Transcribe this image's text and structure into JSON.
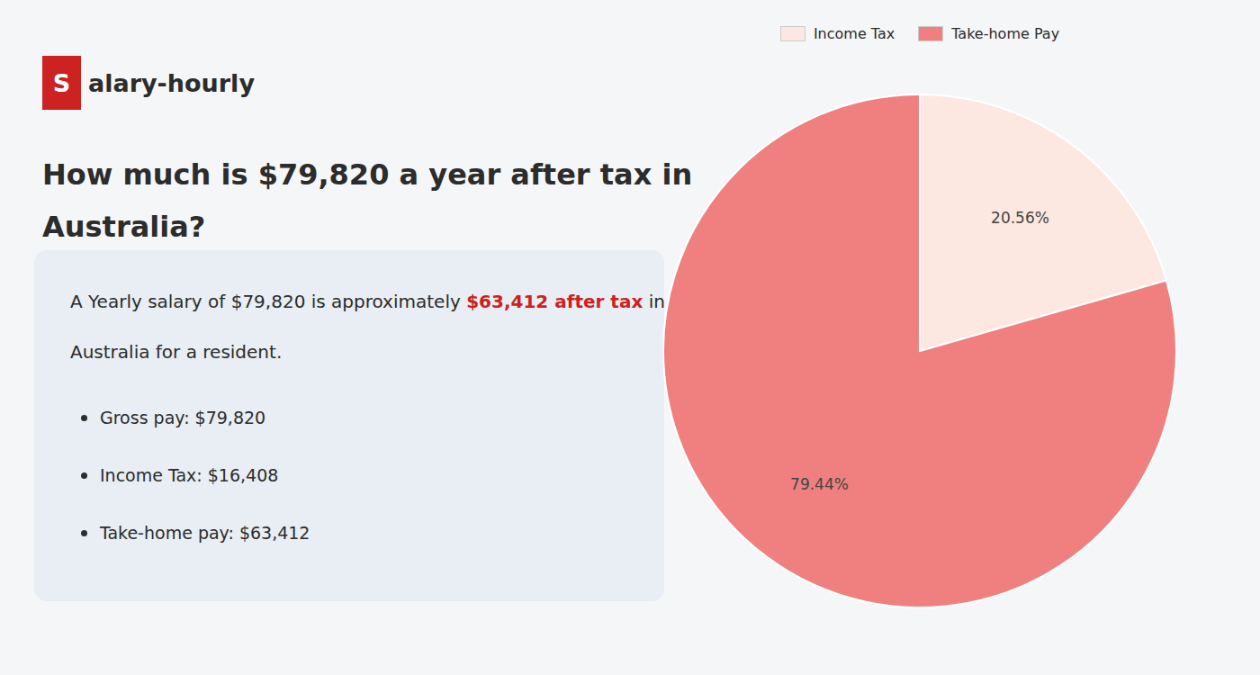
{
  "chart_data": {
    "type": "pie",
    "title": [
      "How much is $79,820 a year after tax in",
      "Australia?"
    ],
    "categories": [
      "Income Tax",
      "Take-home Pay"
    ],
    "values": [
      20.56,
      79.44
    ],
    "value_labels": [
      "20.56%",
      "79.44%"
    ],
    "colors": [
      "#fce8e0",
      "#f08080"
    ],
    "data_labels": true,
    "legend": "top",
    "annotations": {
      "logo": [
        {
          "text": "S",
          "color": "#cc2222"
        },
        {
          "text": "alary-hourly"
        }
      ],
      "summary": [
        [
          {
            "text": "A Yearly salary of $79,820 is approximately "
          },
          {
            "text": "$63,412 after tax",
            "color": "#cc2222"
          },
          {
            "text": " in"
          }
        ],
        [
          {
            "text": "Australia for a resident."
          }
        ]
      ],
      "bullets": [
        "Gross pay: $79,820",
        "Income Tax: $16,408",
        "Take-home pay: $63,412"
      ]
    }
  }
}
